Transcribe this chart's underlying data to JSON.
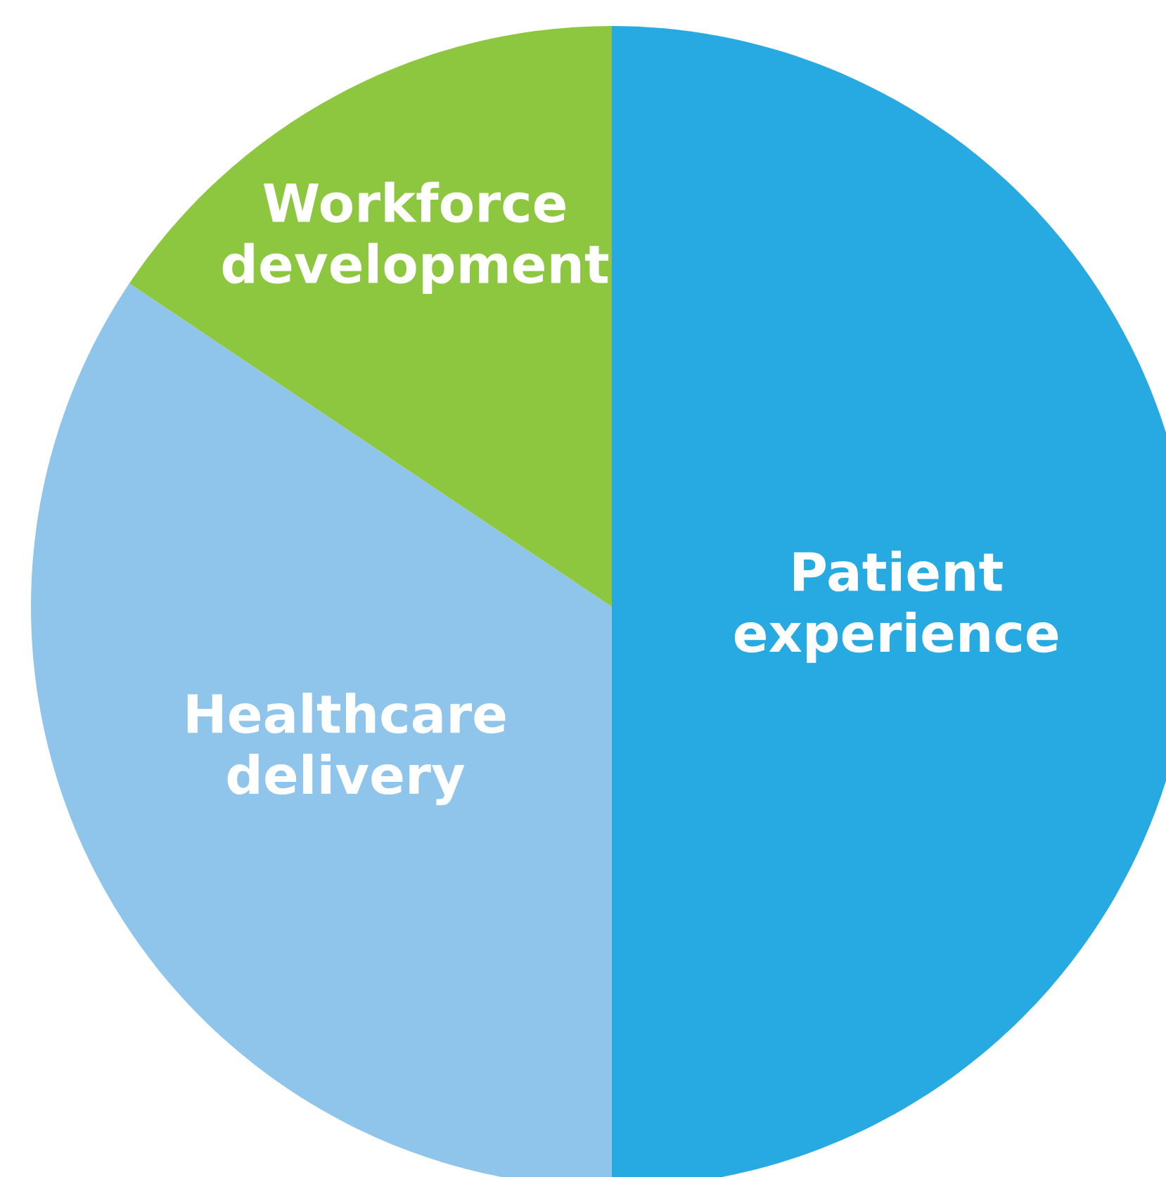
{
  "chart_data": {
    "type": "pie",
    "categories": [
      "Patient\nexperience",
      "Healthcare\ndelivery",
      "Workforce\ndevelopment"
    ],
    "values": [
      50,
      34.4,
      15.6
    ],
    "colors": [
      "#27a9e1",
      "#8fc5ea",
      "#8dc63f"
    ]
  }
}
